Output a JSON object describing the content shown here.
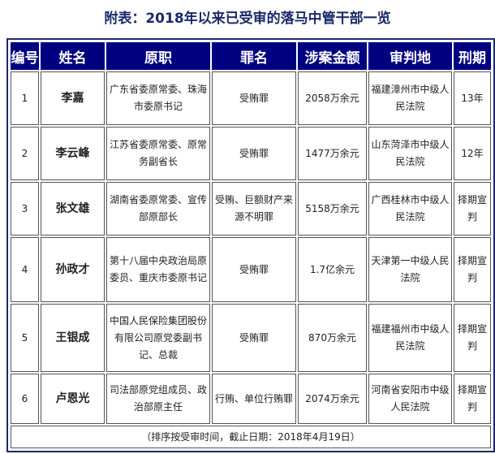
{
  "title": "附表：2018年以来已受审的落马中管干部一览",
  "headers": [
    "编号",
    "姓名",
    "原职",
    "罪名",
    "涉案金额",
    "审判地",
    "刑期"
  ],
  "rows": [
    [
      "1",
      "李嘉",
      "广东省委原常委、珠海市委原书记",
      "受贿罪",
      "2058万余元",
      "福建漳州市中级人民法院",
      "13年"
    ],
    [
      "2",
      "李云峰",
      "江苏省委原常委、原常务副省长",
      "受贿罪",
      "1477万余元",
      "山东菏泽市中级人民法院",
      "12年"
    ],
    [
      "3",
      "张文雄",
      "湖南省委原常委、宣传部原部长",
      "受贿、巨额财产来源不明罪",
      "5158万余元",
      "广西桂林市中级人民法院",
      "择期宣判"
    ],
    [
      "4",
      "孙政才",
      "第十八届中央政治局原委员、重庆市委原书记",
      "受贿罪",
      "1.7亿余元",
      "天津第一中级人民法院",
      "择期宣判"
    ],
    [
      "5",
      "王银成",
      "中国人民保险集团股份有限公司原党委副书记、总裁",
      "受贿罪",
      "870万余元",
      "福建福州市中级人民法院",
      "择期宣判"
    ],
    [
      "6",
      "卢恩光",
      "司法部原党组成员、政治部原主任",
      "行贿、单位行贿罪",
      "2074万余元",
      "河南省安阳市中级人民法院",
      "择期宣判"
    ]
  ],
  "footnote": "（排序按受审时间，截止日期：2018年4月19日）"
}
